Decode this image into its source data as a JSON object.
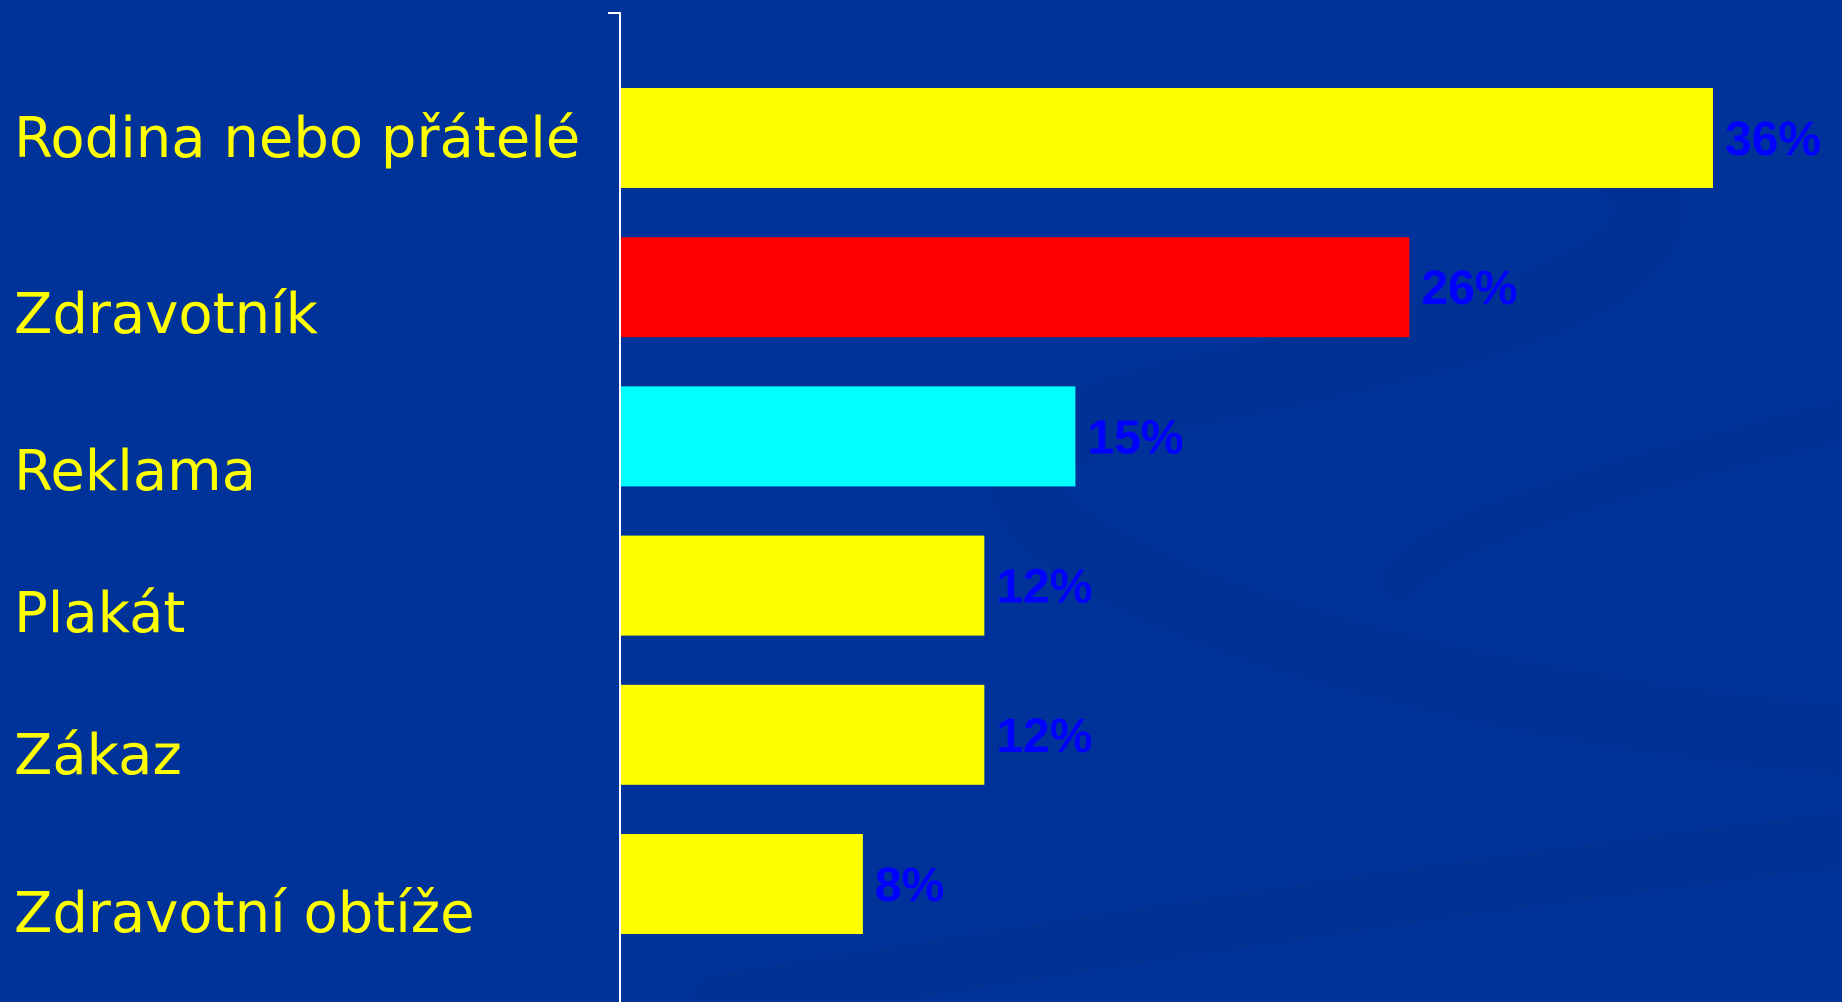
{
  "chart_data": {
    "type": "bar",
    "orientation": "horizontal",
    "categories": [
      "Rodina nebo přátelé",
      "Zdravotník",
      "Reklama",
      "Plakát",
      "Zákaz",
      "Zdravotní obtíže"
    ],
    "values": [
      36,
      26,
      15,
      12,
      12,
      8
    ],
    "value_labels": [
      "36%",
      "26%",
      "15%",
      "12%",
      "12%",
      "8%"
    ],
    "xlim": [
      0,
      36
    ],
    "grid": false,
    "legend": "none",
    "title": "",
    "xlabel": "",
    "ylabel": ""
  },
  "colors": {
    "background": "#003399",
    "background_swoosh": "#00308f",
    "category_text": "#ffff00",
    "value_text": "#0000ff",
    "axis": "#ffffff",
    "bars": [
      "#ffff00",
      "#ff0000",
      "#00ffff",
      "#ffff00",
      "#ffff00",
      "#ffff00"
    ]
  }
}
